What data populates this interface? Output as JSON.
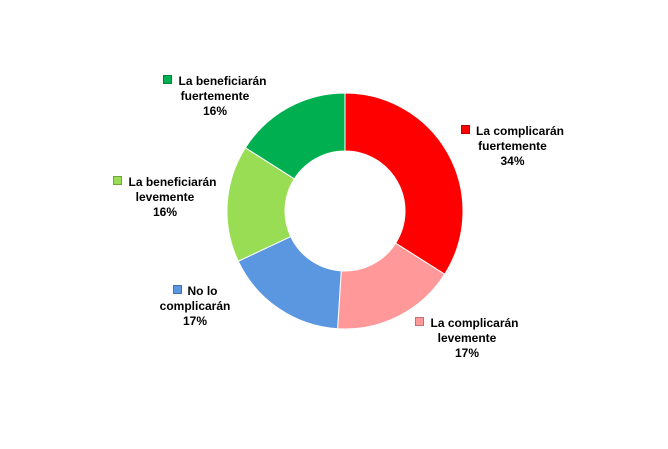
{
  "chart_data": {
    "type": "donut",
    "categories": [
      "La complicarán fuertemente",
      "La complicarán levemente",
      "No lo complicarán",
      "La beneficiarán levemente",
      "La beneficiarán fuertemente"
    ],
    "values": [
      34,
      17,
      17,
      16,
      16
    ],
    "value_labels": [
      "34%",
      "17%",
      "17%",
      "16%",
      "16%"
    ],
    "colors": [
      "#ff0000",
      "#ff9999",
      "#5b97e0",
      "#99dd55",
      "#00b050"
    ]
  }
}
